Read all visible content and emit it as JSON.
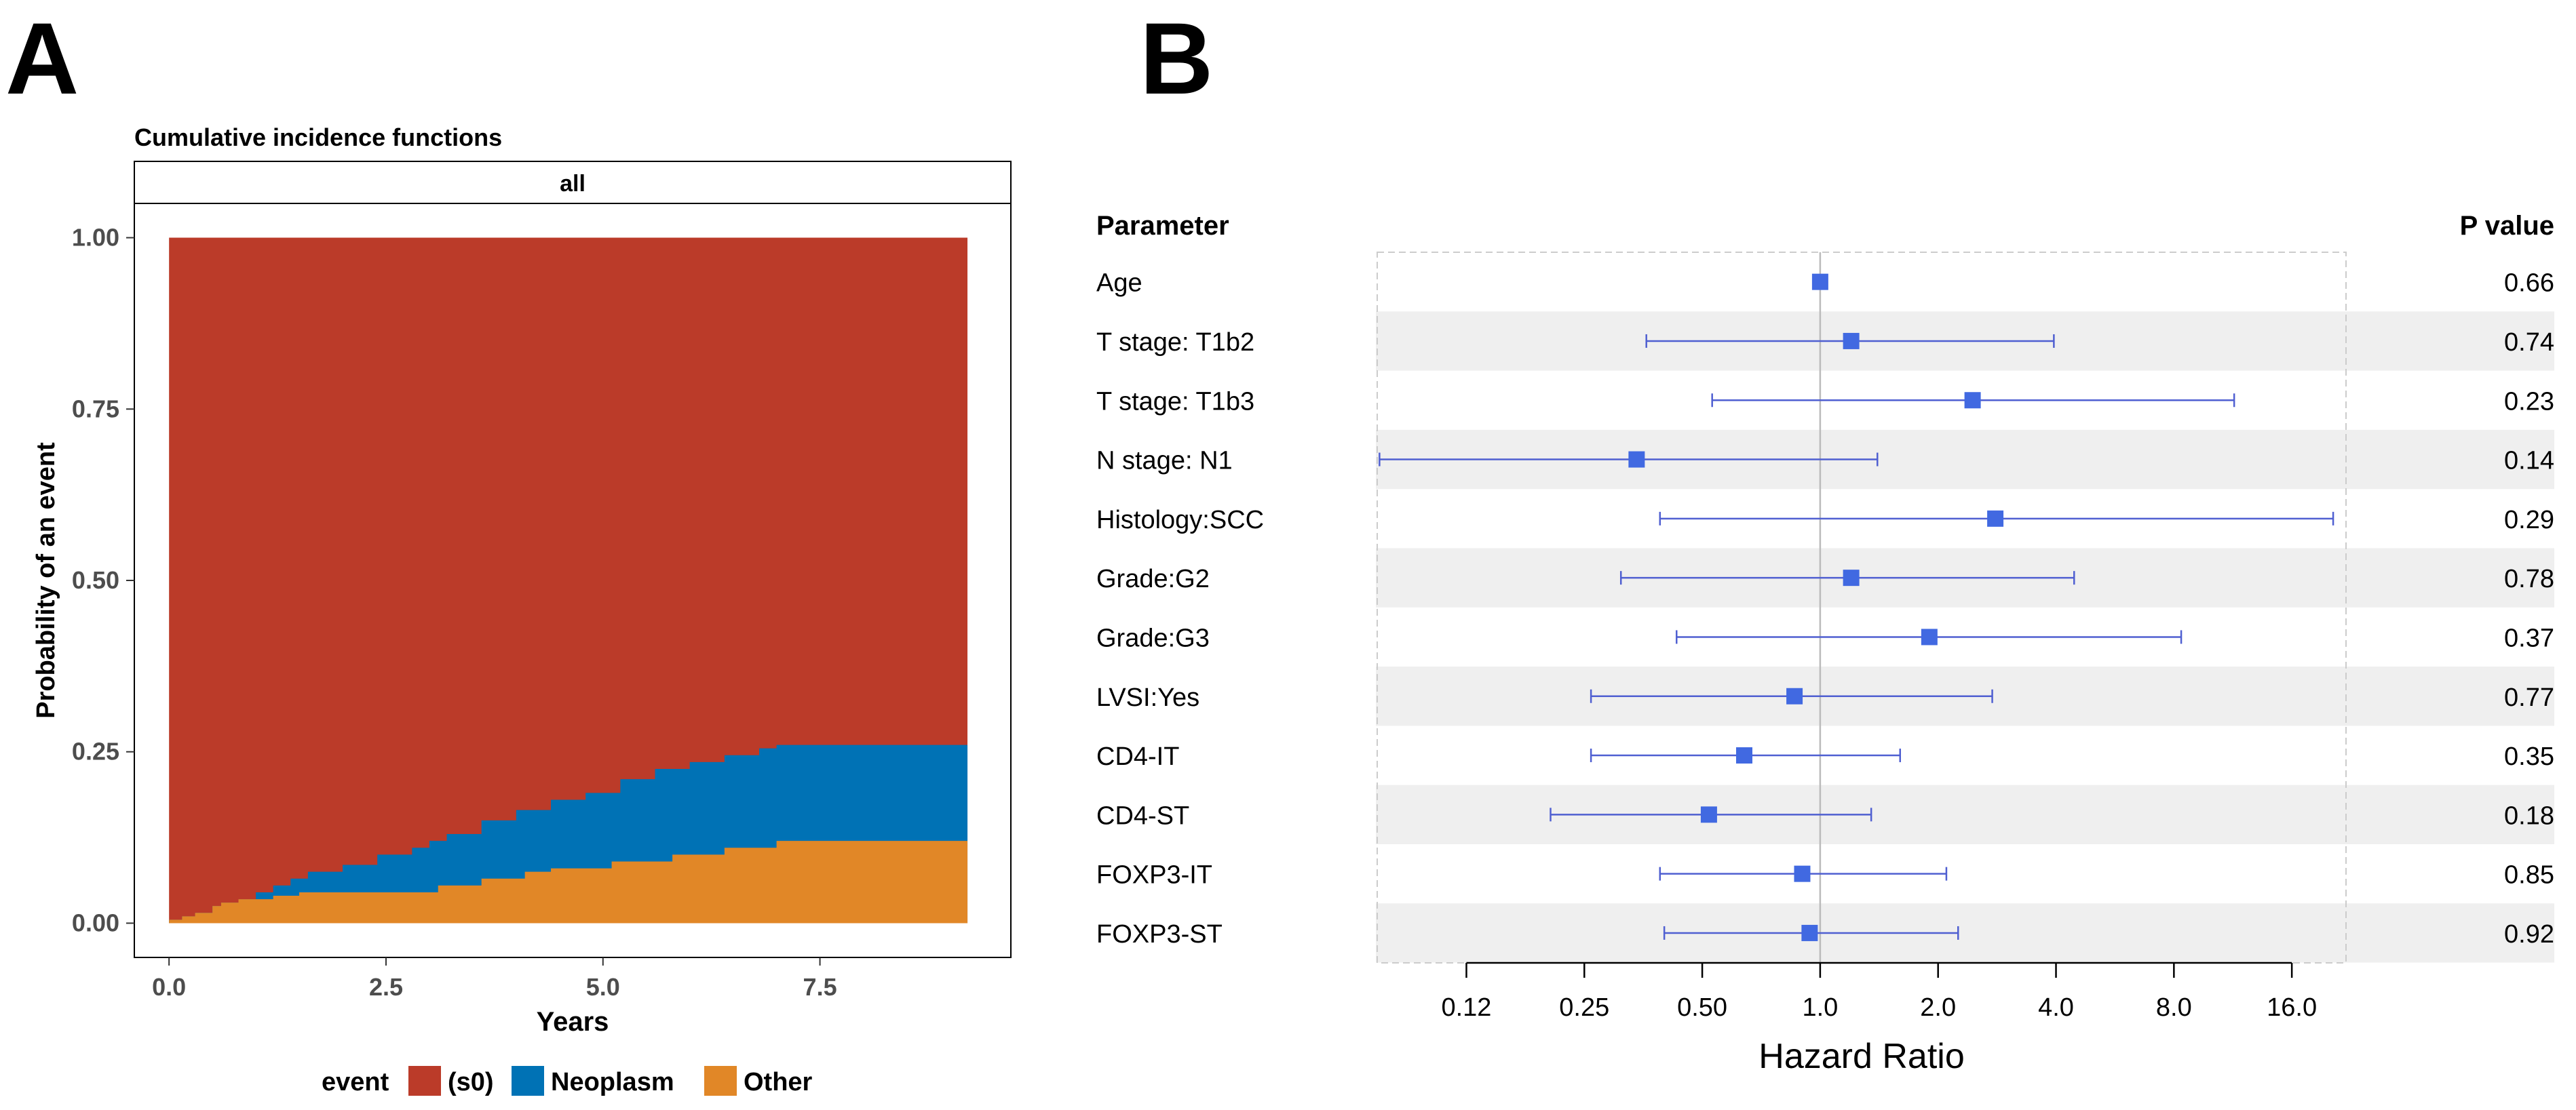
{
  "panels": {
    "a_label": "A",
    "b_label": "B"
  },
  "colors": {
    "s0": "#BB3B29",
    "neoplasm": "#0072B5",
    "other": "#E18727",
    "marker": "#4169E1",
    "ci_line": "#4F5FD1",
    "band": "#EFEFEF",
    "ref_line": "#BBBBBB",
    "dash_border": "#CCCCCC"
  },
  "chart_data": [
    {
      "type": "area",
      "title": "Cumulative incidence functions",
      "strip_label": "all",
      "xlabel": "Years",
      "ylabel": "Probability of an event",
      "xlim": [
        -0.4,
        9.7
      ],
      "ylim": [
        -0.05,
        1.05
      ],
      "xticks": [
        0.0,
        2.5,
        5.0,
        7.5
      ],
      "xtick_labels": [
        "0.0",
        "2.5",
        "5.0",
        "7.5"
      ],
      "yticks": [
        0.0,
        0.25,
        0.5,
        0.75,
        1.0
      ],
      "ytick_labels": [
        "0.00",
        "0.25",
        "0.50",
        "0.75",
        "1.00"
      ],
      "legend": {
        "title": "event",
        "position": "bottom",
        "items": [
          {
            "label": "(s0)",
            "key": "s0"
          },
          {
            "label": "Neoplasm",
            "key": "neoplasm"
          },
          {
            "label": "Other",
            "key": "other"
          }
        ]
      },
      "series": [
        {
          "name": "(s0)",
          "key": "s0",
          "x": [
            0,
            9.2
          ],
          "upper": 1.0
        },
        {
          "name": "Other",
          "key": "other",
          "x": [
            0,
            0.15,
            0.3,
            0.5,
            0.6,
            0.8,
            1.2,
            1.5,
            3.1,
            3.6,
            4.1,
            4.4,
            5.1,
            5.8,
            6.4,
            7.0,
            9.2
          ],
          "y": [
            0.005,
            0.01,
            0.015,
            0.025,
            0.03,
            0.035,
            0.04,
            0.045,
            0.055,
            0.065,
            0.075,
            0.08,
            0.09,
            0.1,
            0.11,
            0.12,
            0.12
          ]
        },
        {
          "name": "Neoplasm",
          "key": "neoplasm",
          "x": [
            0,
            0.15,
            0.3,
            0.5,
            0.6,
            0.8,
            1.0,
            1.2,
            1.4,
            1.6,
            2.0,
            2.4,
            2.8,
            3.0,
            3.2,
            3.6,
            4.0,
            4.4,
            4.8,
            5.2,
            5.6,
            6.0,
            6.4,
            6.8,
            7.0,
            9.2
          ],
          "y": [
            0.005,
            0.01,
            0.015,
            0.025,
            0.03,
            0.035,
            0.045,
            0.055,
            0.065,
            0.075,
            0.085,
            0.1,
            0.11,
            0.12,
            0.13,
            0.15,
            0.165,
            0.18,
            0.19,
            0.21,
            0.225,
            0.235,
            0.245,
            0.255,
            0.26,
            0.26
          ]
        }
      ]
    },
    {
      "type": "forest",
      "xlabel": "Hazard Ratio",
      "scale": "log2",
      "xticks": [
        0.125,
        0.25,
        0.5,
        1.0,
        2.0,
        4.0,
        8.0,
        16.0
      ],
      "xtick_labels": [
        "0.12",
        "0.25",
        "0.50",
        "1.0",
        "2.0",
        "4.0",
        "8.0",
        "16.0"
      ],
      "xlim": [
        0.074,
        22.0
      ],
      "reference_line": 1.0,
      "header": {
        "parameter": "Parameter",
        "pvalue": "P value"
      },
      "rows": [
        {
          "parameter": "Age",
          "hr": 1.0,
          "lower": null,
          "upper": null,
          "p": "0.66"
        },
        {
          "parameter": "T stage: T1b2",
          "hr": 1.2,
          "lower": 0.36,
          "upper": 3.95,
          "p": "0.74"
        },
        {
          "parameter": "T stage: T1b3",
          "hr": 2.45,
          "lower": 0.53,
          "upper": 11.4,
          "p": "0.23"
        },
        {
          "parameter": "N stage: N1",
          "hr": 0.34,
          "lower": 0.075,
          "upper": 1.4,
          "p": "0.14"
        },
        {
          "parameter": "Histology:SCC",
          "hr": 2.8,
          "lower": 0.39,
          "upper": 20.4,
          "p": "0.29"
        },
        {
          "parameter": "Grade:G2",
          "hr": 1.2,
          "lower": 0.31,
          "upper": 4.45,
          "p": "0.78"
        },
        {
          "parameter": "Grade:G3",
          "hr": 1.9,
          "lower": 0.43,
          "upper": 8.35,
          "p": "0.37"
        },
        {
          "parameter": "LVSI:Yes",
          "hr": 0.86,
          "lower": 0.26,
          "upper": 2.75,
          "p": "0.77"
        },
        {
          "parameter": "CD4-IT",
          "hr": 0.64,
          "lower": 0.26,
          "upper": 1.6,
          "p": "0.35"
        },
        {
          "parameter": "CD4-ST",
          "hr": 0.52,
          "lower": 0.205,
          "upper": 1.35,
          "p": "0.18"
        },
        {
          "parameter": "FOXP3-IT",
          "hr": 0.9,
          "lower": 0.39,
          "upper": 2.1,
          "p": "0.85"
        },
        {
          "parameter": "FOXP3-ST",
          "hr": 0.94,
          "lower": 0.4,
          "upper": 2.25,
          "p": "0.92"
        }
      ]
    }
  ]
}
